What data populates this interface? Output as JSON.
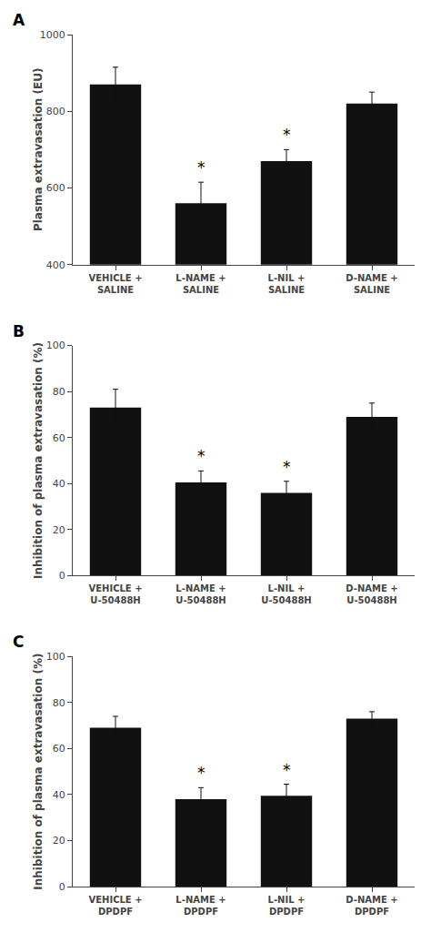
{
  "chart_data": [
    {
      "type": "bar",
      "title": "A",
      "categories": [
        "VEHICLE +\nSALINE",
        "L-NAME +\nSALINE",
        "L-NIL +\nSALINE",
        "D-NAME +\nSALINE"
      ],
      "values": [
        870,
        560,
        670,
        820
      ],
      "errors": [
        45,
        55,
        30,
        30
      ],
      "ylabel": "Plasma extravasation (EU)",
      "color": "#111111",
      "ylim": [
        400,
        1000
      ],
      "yticks": [
        400,
        600,
        800,
        1000
      ],
      "grid": false,
      "annotations": [
        {
          "category": "L-NAME +\nSALINE",
          "text": "*"
        },
        {
          "category": "L-NIL +\nSALINE",
          "text": "*"
        }
      ]
    },
    {
      "type": "bar",
      "title": "B",
      "categories": [
        "VEHICLE +\nU-50488H",
        "L-NAME +\nU-50488H",
        "L-NIL +\nU-50488H",
        "D-NAME +\nU-50488H"
      ],
      "values": [
        73,
        40.5,
        36,
        69
      ],
      "errors": [
        8,
        5,
        5,
        6
      ],
      "ylabel": "Inhibition of plasma extravasation (%)",
      "color": "#111111",
      "ylim": [
        0,
        100
      ],
      "yticks": [
        0,
        20,
        40,
        60,
        80,
        100
      ],
      "grid": false,
      "annotations": [
        {
          "category": "L-NAME +\nU-50488H",
          "text": "*"
        },
        {
          "category": "L-NIL +\nU-50488H",
          "text": "*"
        }
      ]
    },
    {
      "type": "bar",
      "title": "C",
      "categories": [
        "VEHICLE +\nDPDPF",
        "L-NAME +\nDPDPF",
        "L-NIL +\nDPDPF",
        "D-NAME +\nDPDPF"
      ],
      "values": [
        69,
        38,
        39.5,
        73
      ],
      "errors": [
        5,
        5,
        5,
        3
      ],
      "ylabel": "Inhibition of plasma extravasation (%)",
      "color": "#111111",
      "ylim": [
        0,
        100
      ],
      "yticks": [
        0,
        20,
        40,
        60,
        80,
        100
      ],
      "grid": false,
      "annotations": [
        {
          "category": "L-NAME +\nDPDPF",
          "text": "*"
        },
        {
          "category": "L-NIL +\nDPDPF",
          "text": "*"
        }
      ]
    }
  ]
}
